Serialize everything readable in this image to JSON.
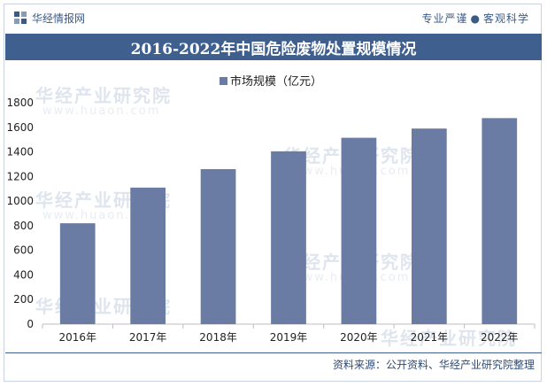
{
  "header": {
    "brand": "华经情报网",
    "slogan_left": "专业严谨",
    "slogan_right": "客观科学"
  },
  "watermark": {
    "text": "华经产业研究院",
    "url": "www.huaon.com"
  },
  "chart_data": {
    "type": "bar",
    "title": "2016-2022年中国危险废物处置规模情况",
    "categories": [
      "2016年",
      "2017年",
      "2018年",
      "2019年",
      "2020年",
      "2021年",
      "2022年"
    ],
    "series": [
      {
        "name": "市场规模（亿元）",
        "values": [
          820,
          1110,
          1260,
          1405,
          1515,
          1590,
          1675
        ]
      }
    ],
    "ylim": [
      0,
      1800
    ],
    "yticks": [
      0,
      200,
      400,
      600,
      800,
      1000,
      1200,
      1400,
      1600,
      1800
    ],
    "legend": "top",
    "grid": false,
    "bar_color": "#6a7ca3"
  },
  "footer": {
    "source": "资料来源：公开资料、华经产业研究院整理"
  }
}
